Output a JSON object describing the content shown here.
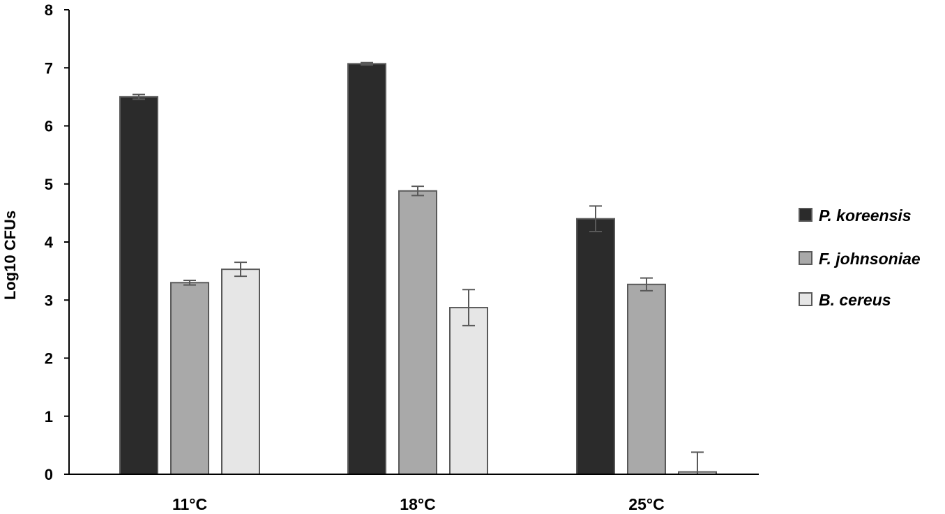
{
  "chart_data": {
    "type": "bar",
    "categories": [
      "11°C",
      "18°C",
      "25°C"
    ],
    "series": [
      {
        "name": "P. koreensis",
        "values": [
          6.5,
          7.07,
          4.4
        ],
        "errors": [
          0.04,
          0.02,
          0.22
        ],
        "color": "#2b2b2b"
      },
      {
        "name": "F. johnsoniae",
        "values": [
          3.3,
          4.88,
          3.27
        ],
        "errors": [
          0.04,
          0.08,
          0.11
        ],
        "color": "#a9a9a9"
      },
      {
        "name": "B. cereus",
        "values": [
          3.53,
          2.87,
          0.04
        ],
        "errors": [
          0.12,
          0.31,
          0.34
        ],
        "color": "#e6e6e6"
      }
    ],
    "title": "",
    "xlabel": "",
    "ylabel": "Log10 CFUs",
    "ylim": [
      0,
      8
    ],
    "yticks": [
      "0",
      "1",
      "2",
      "3",
      "4",
      "5",
      "6",
      "7",
      "8"
    ],
    "grid": false,
    "legend_position": "right",
    "bar_outline_color": "#595959",
    "axis_color": "#000000"
  }
}
